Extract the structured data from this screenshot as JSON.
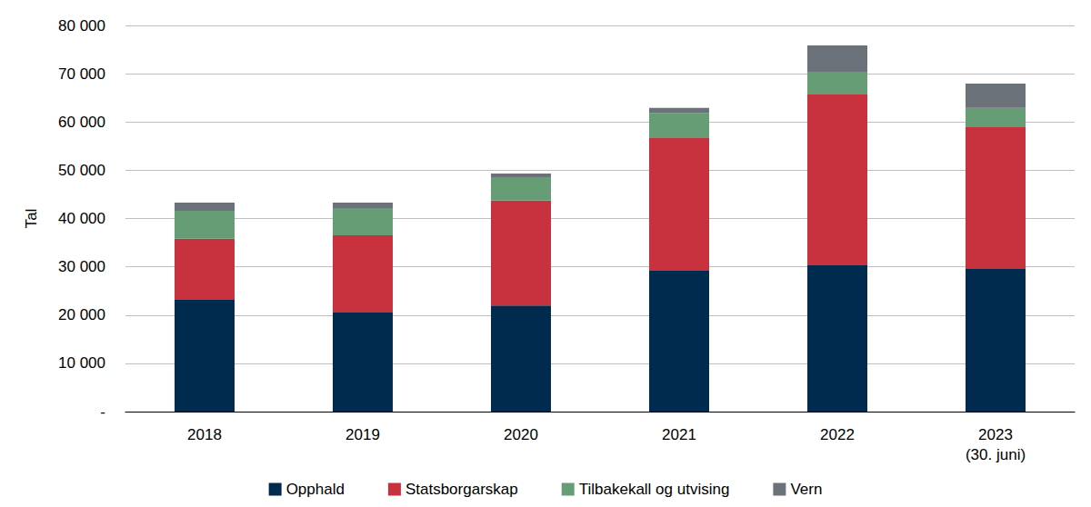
{
  "chart_data": {
    "type": "bar",
    "stacked": true,
    "grid": true,
    "legend": "bottom",
    "y_label": "Tal",
    "categories": [
      "2018",
      "2019",
      "2020",
      "2021",
      "2022",
      "2023\n(30. juni)"
    ],
    "series": [
      {
        "name": "Opphald",
        "color": "#002b4e",
        "values": [
          23150,
          20500,
          22000,
          29200,
          30300,
          29550
        ]
      },
      {
        "name": "Statsborgarskap",
        "color": "#c8313e",
        "values": [
          12650,
          16000,
          21700,
          27450,
          35400,
          29350
        ]
      },
      {
        "name": "Tilbakekall og utvising",
        "color": "#679d74",
        "values": [
          5800,
          5650,
          4850,
          5250,
          4700,
          4000
        ]
      },
      {
        "name": "Vern",
        "color": "#6b7279",
        "values": [
          1700,
          1150,
          750,
          1000,
          5450,
          5050
        ]
      }
    ],
    "ylim": [
      0,
      80000
    ],
    "yticks": [
      {
        "value": 0,
        "label": "-"
      },
      {
        "value": 10000,
        "label": "10 000"
      },
      {
        "value": 20000,
        "label": "20 000"
      },
      {
        "value": 30000,
        "label": "30 000"
      },
      {
        "value": 40000,
        "label": "40 000"
      },
      {
        "value": 50000,
        "label": "50 000"
      },
      {
        "value": 60000,
        "label": "60 000"
      },
      {
        "value": 70000,
        "label": "70 000"
      },
      {
        "value": 80000,
        "label": "80 000"
      }
    ]
  }
}
